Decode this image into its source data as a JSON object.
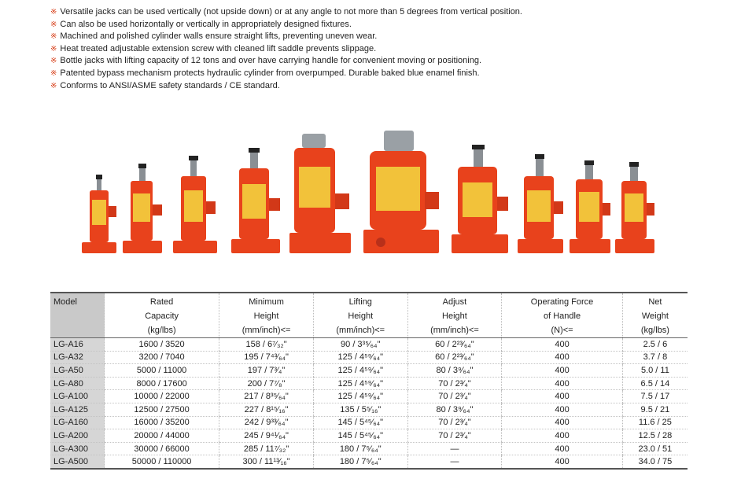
{
  "features": [
    "Versatile jacks can be used vertically (not upside down) or at any angle to not more than 5 degrees from vertical position.",
    "Can also  be  used  horizontally  or  vertically  in appropriately designed fixtures.",
    "Machined and polished cylinder walls ensure straight lifts, preventing uneven wear.",
    "Heat treated adjustable extension screw with cleaned lift saddle prevents slippage.",
    "Bottle jacks with lifting capacity of 12 tons and over have carrying handle for convenient moving or positioning.",
    "Patented bypass mechanism protects hydraulic cylinder from overpumped. Durable baked blue enamel finish.",
    "Conforms to ANSI/ASME safety standards / CE standard."
  ],
  "bullet_mark": "※",
  "colors": {
    "jack_red": "#e8421c",
    "label_yellow": "#f2c23a",
    "steel": "#8a8f94",
    "header_gray": "#c9c9c9"
  },
  "table": {
    "headers": [
      {
        "lines": [
          "Model"
        ]
      },
      {
        "lines": [
          "Rated",
          "Capacity",
          "(kg/lbs)"
        ]
      },
      {
        "lines": [
          "Minimum",
          "Height",
          "(mm/inch)<="
        ]
      },
      {
        "lines": [
          "Lifting",
          "Height",
          "(mm/inch)<="
        ]
      },
      {
        "lines": [
          "Adjust",
          "Height",
          "(mm/inch)<="
        ]
      },
      {
        "lines": [
          "Operating Force",
          "of Handle",
          "(N)<="
        ]
      },
      {
        "lines": [
          "Net",
          "Weight",
          "(kg/lbs)"
        ]
      }
    ],
    "rows": [
      [
        "LG-A16",
        "1600 / 3520",
        "158 / 6⁷⁄₃₂\"",
        "90 / 3³⁵⁄₆₄\"",
        "60 / 2²³⁄₆₄\"",
        "400",
        "2.5 / 6"
      ],
      [
        "LG-A32",
        "3200 / 7040",
        "195 / 7⁴³⁄₆₄\"",
        "125 / 4⁵⁹⁄₆₄\"",
        "60 / 2²³⁄₆₄\"",
        "400",
        "3.7 / 8"
      ],
      [
        "LG-A50",
        "5000 / 11000",
        "197 / 7³⁄₄\"",
        "125 / 4⁵⁹⁄₆₄\"",
        "80 / 3⁹⁄₆₄\"",
        "400",
        "5.0 / 11"
      ],
      [
        "LG-A80",
        "8000 / 17600",
        "200 / 7⁷⁄₈\"",
        "125 / 4⁵⁹⁄₆₄\"",
        "70 / 2³⁄₄\"",
        "400",
        "6.5 / 14"
      ],
      [
        "LG-A100",
        "10000 / 22000",
        "217 / 8³⁵⁄₆₄\"",
        "125 / 4⁵⁹⁄₆₄\"",
        "70 / 2³⁄₄\"",
        "400",
        "7.5 / 17"
      ],
      [
        "LG-A125",
        "12500 / 27500",
        "227 / 8¹⁵⁄₁₆\"",
        "135 / 5⁵⁄₁₆\"",
        "80 / 3⁹⁄₆₄\"",
        "400",
        "9.5 / 21"
      ],
      [
        "LG-A160",
        "16000 / 35200",
        "242 / 9³³⁄₆₄\"",
        "145 / 5⁴⁵⁄₆₄\"",
        "70 / 2³⁄₄\"",
        "400",
        "11.6 / 25"
      ],
      [
        "LG-A200",
        "20000 / 44000",
        "245 / 9⁴¹⁄₆₄\"",
        "145 / 5⁴⁵⁄₆₄\"",
        "70 / 2³⁄₄\"",
        "400",
        "12.5 / 28"
      ],
      [
        "LG-A300",
        "30000 / 66000",
        "285 / 11⁷⁄₃₂\"",
        "180 / 7⁵⁄₆₄\"",
        "—",
        "400",
        "23.0 / 51"
      ],
      [
        "LG-A500",
        "50000 / 110000",
        "300 / 11¹³⁄₁₆\"",
        "180 / 7⁵⁄₆₄\"",
        "—",
        "400",
        "34.0 / 75"
      ]
    ]
  }
}
